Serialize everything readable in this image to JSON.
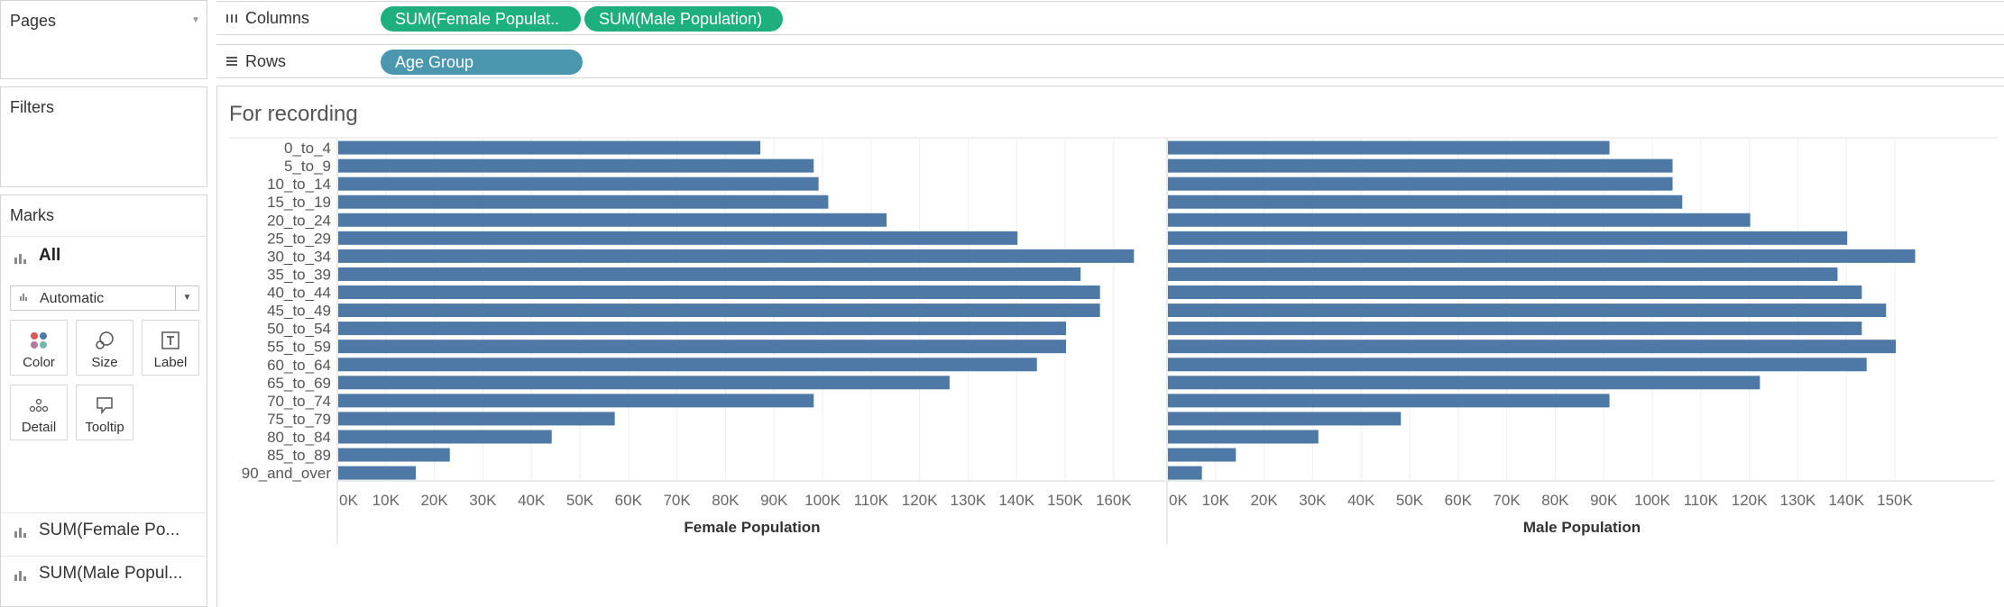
{
  "sidebar": {
    "pages_title": "Pages",
    "filters_title": "Filters",
    "marks_title": "Marks",
    "all_label": "All",
    "mark_type": "Automatic",
    "buttons": [
      "Color",
      "Size",
      "Label",
      "Detail",
      "Tooltip"
    ],
    "measure_pills": [
      "SUM(Female Po...",
      "SUM(Male Popul..."
    ]
  },
  "shelves": {
    "columns_label": "Columns",
    "columns_pills": [
      "SUM(Female Populat..",
      "SUM(Male Population)"
    ],
    "rows_label": "Rows",
    "rows_pills": [
      "Age Group"
    ]
  },
  "sheet": {
    "title": "For recording"
  },
  "colors": {
    "bar": "#4e79a7",
    "pill_green": "#1eaf7e",
    "pill_blue": "#4b97b0"
  },
  "chart_data": [
    {
      "type": "bar",
      "orientation": "horizontal",
      "xlabel": "Female Population",
      "categories": [
        "0_to_4",
        "5_to_9",
        "10_to_14",
        "15_to_19",
        "20_to_24",
        "25_to_29",
        "30_to_34",
        "35_to_39",
        "40_to_44",
        "45_to_49",
        "50_to_54",
        "55_to_59",
        "60_to_64",
        "65_to_69",
        "70_to_74",
        "75_to_79",
        "80_to_84",
        "85_to_89",
        "90_and_over"
      ],
      "values": [
        87000,
        98000,
        99000,
        101000,
        113000,
        140000,
        164000,
        153000,
        157000,
        157000,
        150000,
        150000,
        144000,
        126000,
        98000,
        57000,
        44000,
        23000,
        16000
      ],
      "xlim": [
        0,
        170000
      ],
      "ticks": [
        "0K",
        "10K",
        "20K",
        "30K",
        "40K",
        "50K",
        "60K",
        "70K",
        "80K",
        "90K",
        "100K",
        "110K",
        "120K",
        "130K",
        "140K",
        "150K",
        "160K"
      ]
    },
    {
      "type": "bar",
      "orientation": "horizontal",
      "xlabel": "Male Population",
      "categories": [
        "0_to_4",
        "5_to_9",
        "10_to_14",
        "15_to_19",
        "20_to_24",
        "25_to_29",
        "30_to_34",
        "35_to_39",
        "40_to_44",
        "45_to_49",
        "50_to_54",
        "55_to_59",
        "60_to_64",
        "65_to_69",
        "70_to_74",
        "75_to_79",
        "80_to_84",
        "85_to_89",
        "90_and_over"
      ],
      "values": [
        91000,
        104000,
        104000,
        106000,
        120000,
        140000,
        154000,
        138000,
        143000,
        148000,
        143000,
        150000,
        144000,
        122000,
        91000,
        48000,
        31000,
        14000,
        7000
      ],
      "xlim": [
        0,
        161000
      ],
      "ticks": [
        "0K",
        "10K",
        "20K",
        "30K",
        "40K",
        "50K",
        "60K",
        "70K",
        "80K",
        "90K",
        "100K",
        "110K",
        "120K",
        "130K",
        "140K",
        "150K"
      ]
    }
  ]
}
